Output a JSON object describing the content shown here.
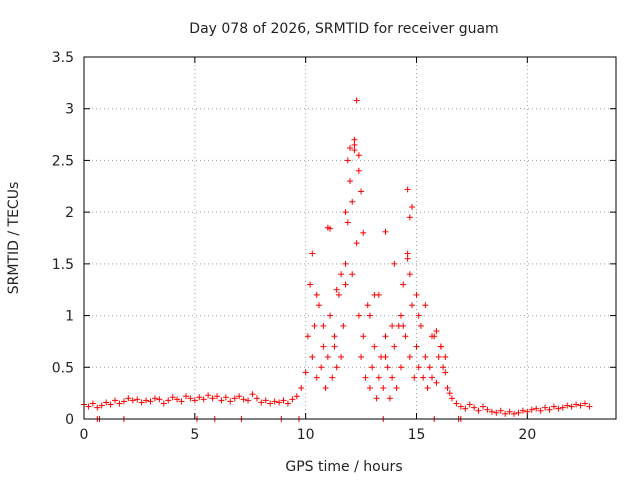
{
  "chart_data": {
    "type": "scatter",
    "title": "Day 078 of 2026, SRMTID for receiver guam",
    "xlabel": "GPS time / hours",
    "ylabel": "SRMTID / TECUs",
    "xlim": [
      0,
      24
    ],
    "ylim": [
      0,
      3.5
    ],
    "xticks": [
      0,
      5,
      10,
      15,
      20
    ],
    "yticks": [
      0,
      0.5,
      1,
      1.5,
      2,
      2.5,
      3,
      3.5
    ],
    "xtick_labels": [
      "0",
      "5",
      "10",
      "15",
      "20"
    ],
    "ytick_labels": [
      "0",
      "0.5",
      "1",
      "1.5",
      "2",
      "2.5",
      "3",
      "3.5"
    ],
    "grid": true,
    "marker": "+",
    "series": [
      {
        "name": "SRMTID",
        "color": "#ff0000",
        "x": [
          0.0,
          0.2,
          0.4,
          0.6,
          0.8,
          1.0,
          1.2,
          1.4,
          1.6,
          1.8,
          2.0,
          2.2,
          2.4,
          2.6,
          2.8,
          3.0,
          3.2,
          3.4,
          3.6,
          3.8,
          4.0,
          4.2,
          4.4,
          4.6,
          4.8,
          5.0,
          5.2,
          5.4,
          5.6,
          5.8,
          6.0,
          6.2,
          6.4,
          6.6,
          6.8,
          7.0,
          7.2,
          7.4,
          7.6,
          7.8,
          8.0,
          8.2,
          8.4,
          8.6,
          8.8,
          9.0,
          9.2,
          9.4,
          9.6,
          9.8,
          10.0,
          10.1,
          10.2,
          10.3,
          10.4,
          10.5,
          10.6,
          10.7,
          10.8,
          10.9,
          11.0,
          11.1,
          11.2,
          11.3,
          11.4,
          11.5,
          11.6,
          11.7,
          11.8,
          11.9,
          12.0,
          12.1,
          12.2,
          12.3,
          12.4,
          12.5,
          12.6,
          12.7,
          12.8,
          12.9,
          13.0,
          13.1,
          13.2,
          13.3,
          13.4,
          13.5,
          13.6,
          13.7,
          13.8,
          13.9,
          14.0,
          14.1,
          14.2,
          14.3,
          14.4,
          14.5,
          14.6,
          14.7,
          14.8,
          14.9,
          15.0,
          15.1,
          15.2,
          15.3,
          15.4,
          15.5,
          15.6,
          15.7,
          15.8,
          15.9,
          16.0,
          16.1,
          16.2,
          16.3,
          16.4,
          16.5,
          16.6,
          16.8,
          17.0,
          17.2,
          17.4,
          17.6,
          17.8,
          18.0,
          18.2,
          18.4,
          18.6,
          18.8,
          19.0,
          19.2,
          19.4,
          19.6,
          19.8,
          20.0,
          20.2,
          20.4,
          20.6,
          20.8,
          21.0,
          21.2,
          21.4,
          21.6,
          21.8,
          22.0,
          22.2,
          22.4,
          22.6,
          22.8,
          10.3,
          10.5,
          10.8,
          11.0,
          11.3,
          11.6,
          11.9,
          12.1,
          12.2,
          12.3,
          12.4,
          12.6,
          12.9,
          13.3,
          13.6,
          14.0,
          14.3,
          14.6,
          14.7,
          14.8,
          15.1,
          15.4,
          15.7,
          16.1,
          16.3,
          11.1,
          11.4,
          11.8,
          12.5,
          13.1,
          13.9,
          14.4,
          15.0,
          15.9,
          12.2,
          12.0,
          11.8,
          12.4,
          14.7,
          14.6,
          13.6
        ],
        "y": [
          0.14,
          0.12,
          0.15,
          0.11,
          0.13,
          0.16,
          0.14,
          0.18,
          0.15,
          0.17,
          0.2,
          0.18,
          0.19,
          0.16,
          0.18,
          0.17,
          0.2,
          0.19,
          0.15,
          0.18,
          0.21,
          0.19,
          0.17,
          0.22,
          0.2,
          0.18,
          0.21,
          0.19,
          0.23,
          0.2,
          0.22,
          0.18,
          0.21,
          0.17,
          0.2,
          0.22,
          0.19,
          0.18,
          0.24,
          0.2,
          0.16,
          0.18,
          0.15,
          0.17,
          0.16,
          0.18,
          0.15,
          0.19,
          0.22,
          0.3,
          0.45,
          0.8,
          1.3,
          0.6,
          0.9,
          0.4,
          1.1,
          0.5,
          0.7,
          0.3,
          0.6,
          1.0,
          0.4,
          0.8,
          0.5,
          1.2,
          0.6,
          0.9,
          1.5,
          1.9,
          2.3,
          1.4,
          2.6,
          1.7,
          1.0,
          0.6,
          0.8,
          0.4,
          1.1,
          0.3,
          0.5,
          0.7,
          0.2,
          0.4,
          0.6,
          0.3,
          0.8,
          0.5,
          0.2,
          0.4,
          0.7,
          0.3,
          0.9,
          0.5,
          1.3,
          0.8,
          1.6,
          0.6,
          1.1,
          0.4,
          0.7,
          0.5,
          0.9,
          0.4,
          0.6,
          0.3,
          0.5,
          0.4,
          0.8,
          0.35,
          0.6,
          0.7,
          0.5,
          0.45,
          0.3,
          0.25,
          0.2,
          0.15,
          0.12,
          0.1,
          0.14,
          0.11,
          0.08,
          0.12,
          0.09,
          0.07,
          0.06,
          0.08,
          0.05,
          0.07,
          0.05,
          0.06,
          0.08,
          0.07,
          0.09,
          0.1,
          0.08,
          0.11,
          0.09,
          0.12,
          0.1,
          0.11,
          0.13,
          0.12,
          0.14,
          0.13,
          0.15,
          0.12,
          1.6,
          1.2,
          0.9,
          1.85,
          0.7,
          1.4,
          2.5,
          2.1,
          2.7,
          3.08,
          2.4,
          1.8,
          1.0,
          1.2,
          0.6,
          1.5,
          1.0,
          2.22,
          1.95,
          2.05,
          1.0,
          1.1,
          0.8,
          0.7,
          0.6,
          1.84,
          1.25,
          1.3,
          2.2,
          1.2,
          0.9,
          0.9,
          1.2,
          0.85,
          2.65,
          2.62,
          2.0,
          2.55,
          1.4,
          1.55,
          1.81
        ]
      }
    ],
    "baseline_ticks_x": [
      0.6,
      0.7,
      1.8,
      5.1,
      5.9,
      7.1,
      8.9,
      9.7,
      13.5,
      15.8,
      16.9,
      17.0
    ]
  }
}
